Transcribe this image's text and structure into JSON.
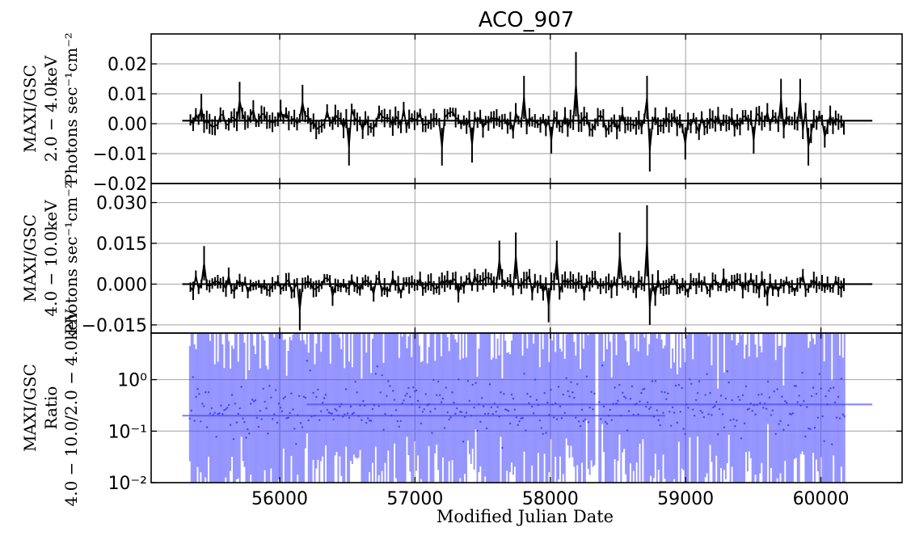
{
  "title": "ACO_907",
  "colors": {
    "series": "#000000",
    "ratio": "#4040ff",
    "grid": "#b0b0b0"
  },
  "chart_data": [
    {
      "type": "line",
      "panel": "top",
      "ylabel": [
        "MAXI/GSC",
        "2.0 − 4.0keV",
        "Photons sec⁻¹cm⁻²"
      ],
      "ylim": [
        -0.02,
        0.03
      ],
      "yticks": [
        -0.02,
        -0.01,
        0.0,
        0.01,
        0.02
      ],
      "ytick_labels": [
        "−0.02",
        "−0.01",
        "0.00",
        "0.01",
        "0.02"
      ],
      "xlim": [
        55050,
        60600
      ],
      "grid": true,
      "series": [
        {
          "data_extent_mjd": [
            55280,
            60380
          ],
          "binned_extent_mjd": [
            55330,
            60180
          ],
          "mean_level": 0.001,
          "typical_amplitude": 0.004,
          "peaks": [
            [
              55420,
              0.01
            ],
            [
              55700,
              0.014
            ],
            [
              56000,
              0.008
            ],
            [
              56170,
              0.013
            ],
            [
              56520,
              -0.014
            ],
            [
              57200,
              -0.014
            ],
            [
              57420,
              -0.013
            ],
            [
              57800,
              0.016
            ],
            [
              58000,
              -0.01
            ],
            [
              58180,
              0.024
            ],
            [
              58720,
              0.016
            ],
            [
              58730,
              -0.016
            ],
            [
              59000,
              -0.012
            ],
            [
              59500,
              -0.01
            ],
            [
              59700,
              0.015
            ],
            [
              59850,
              0.015
            ],
            [
              59900,
              -0.014
            ],
            [
              60020,
              -0.008
            ]
          ]
        }
      ]
    },
    {
      "type": "line",
      "panel": "middle",
      "ylabel": [
        "MAXI/GSC",
        "4.0 − 10.0keV",
        "Photons sec⁻¹cm⁻²"
      ],
      "ylim": [
        -0.018,
        0.037
      ],
      "yticks": [
        -0.015,
        0.0,
        0.015,
        0.03
      ],
      "ytick_labels": [
        "−0.015",
        "0.000",
        "0.015",
        "0.030"
      ],
      "xlim": [
        55050,
        60600
      ],
      "grid": true,
      "series": [
        {
          "data_extent_mjd": [
            55280,
            60380
          ],
          "binned_extent_mjd": [
            55330,
            60180
          ],
          "mean_level": 0.0,
          "typical_amplitude": 0.004,
          "peaks": [
            [
              55440,
              0.014
            ],
            [
              56150,
              -0.017
            ],
            [
              56400,
              -0.008
            ],
            [
              57620,
              0.016
            ],
            [
              57750,
              0.019
            ],
            [
              57980,
              -0.014
            ],
            [
              58050,
              0.016
            ],
            [
              58520,
              0.019
            ],
            [
              58720,
              0.029
            ],
            [
              58730,
              -0.015
            ],
            [
              58780,
              -0.008
            ],
            [
              59600,
              -0.008
            ]
          ]
        }
      ]
    },
    {
      "type": "scatter",
      "panel": "bottom",
      "ylabel": [
        "MAXI/GSC",
        "Ratio",
        "4.0 − 10.0/2.0 − 4.0keV"
      ],
      "xlabel": "Modified Julian Date",
      "yscale": "log",
      "ylim": [
        0.01,
        8.0
      ],
      "yticks": [
        0.01,
        0.1,
        1.0
      ],
      "ytick_labels": [
        "10⁻²",
        "10⁻¹",
        "10⁰"
      ],
      "xlim": [
        55050,
        60600
      ],
      "xticks": [
        56000,
        57000,
        58000,
        59000,
        60000
      ],
      "xtick_labels": [
        "56000",
        "57000",
        "58000",
        "59000",
        "60000"
      ],
      "grid": true,
      "series": [
        {
          "reference_lines": [
            {
              "x_from": 55280,
              "x_to": 58850,
              "value": 0.2
            },
            {
              "x_from": 56200,
              "x_to": 60380,
              "value": 0.33
            }
          ],
          "binned_extent_mjd": [
            55330,
            60180
          ],
          "gap_mjd": [
            58330,
            58360
          ],
          "typical_value": 0.3
        }
      ]
    }
  ]
}
